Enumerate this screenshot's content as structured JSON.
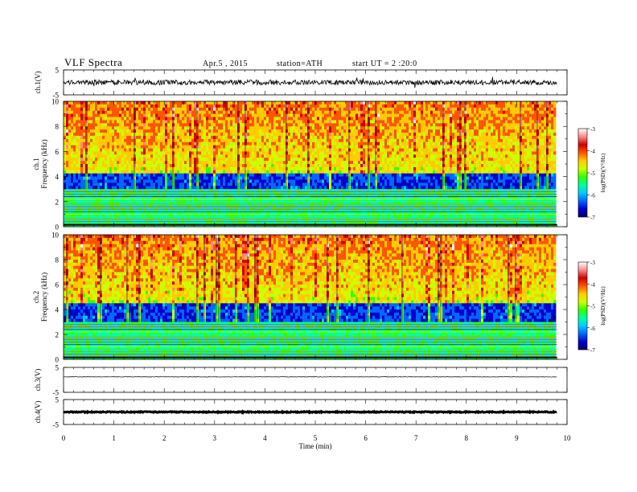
{
  "header": {
    "title": "VLF Spectra",
    "date": "Apr.5 , 2015",
    "station": "station=ATH",
    "start_ut": "start UT = 2 :20:0"
  },
  "colors": {
    "colormap": [
      "#000066",
      "#0000cc",
      "#0066ff",
      "#00ccff",
      "#00ff99",
      "#33ff00",
      "#ccff00",
      "#ffcc00",
      "#ff5500",
      "#cc0000",
      "#ff8888",
      "#ffffff"
    ],
    "waveform": "#000000",
    "axis": "#000000",
    "background": "#ffffff"
  },
  "chart_data": [
    {
      "type": "line",
      "panel": "ch1-waveform",
      "ylabel": "ch.1(V)",
      "ylim": [
        -5,
        5
      ],
      "yticks": [
        "5",
        "-5"
      ],
      "x_range_min": [
        0,
        9.8
      ],
      "description_values": {
        "baseline": 0,
        "amplitude_approx": 1
      }
    },
    {
      "type": "heatmap",
      "panel": "ch1-spectrogram",
      "ylabel": "ch.1 Frequency (kHz)",
      "ylim": [
        0,
        10
      ],
      "yticks": [
        "0",
        "2",
        "4",
        "6",
        "8",
        "10"
      ],
      "colorbar": {
        "label": "log(PSD)(V²/Hz)",
        "range": [
          -7,
          -3
        ],
        "ticks": [
          "-3",
          "-4",
          "-5",
          "-6",
          "-7"
        ]
      },
      "dark_band_khz": [
        3.0,
        4.2
      ]
    },
    {
      "type": "heatmap",
      "panel": "ch2-spectrogram",
      "ylabel": "ch.2 Frequency (kHz)",
      "ylim": [
        0,
        10
      ],
      "yticks": [
        "0",
        "2",
        "4",
        "6",
        "8",
        "10"
      ],
      "colorbar": {
        "label": "log(PSD)(V²/Hz)",
        "range": [
          -7,
          -3
        ],
        "ticks": [
          "-3",
          "-4",
          "-5",
          "-6",
          "-7"
        ]
      },
      "dark_band_khz": [
        3.0,
        4.6
      ]
    },
    {
      "type": "line",
      "panel": "ch3-waveform",
      "ylabel": "ch.3(V)",
      "ylim": [
        -5,
        5
      ],
      "yticks": [
        "5",
        "-5"
      ],
      "description_values": {
        "baseline": 1.2,
        "amplitude_approx": 0.1
      }
    },
    {
      "type": "line",
      "panel": "ch4-waveform",
      "ylabel": "ch.4(V)",
      "ylim": [
        -5,
        5
      ],
      "yticks": [
        "5",
        "-5"
      ],
      "description_values": {
        "baseline": 0,
        "amplitude_approx": 0.2
      }
    }
  ],
  "x_axis": {
    "label": "Time (min)",
    "xlim": [
      0,
      10
    ],
    "ticks": [
      "0",
      "1",
      "2",
      "3",
      "4",
      "5",
      "6",
      "7",
      "8",
      "9",
      "10"
    ],
    "data_end_min": 9.8
  }
}
